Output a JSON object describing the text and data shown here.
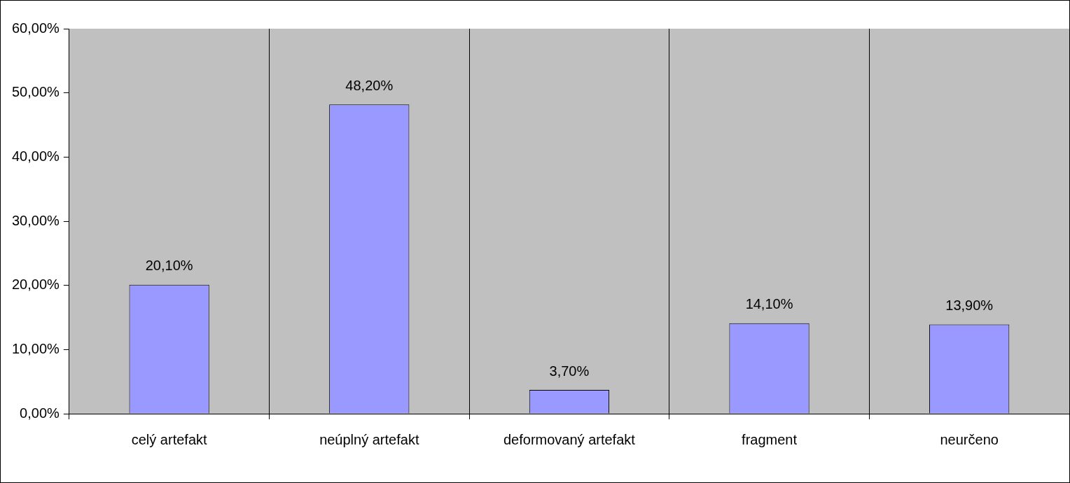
{
  "chart_data": {
    "type": "bar",
    "categories": [
      "celý artefakt",
      "neúplný artefakt",
      "deformovaný artefakt",
      "fragment",
      "neurčeno"
    ],
    "values": [
      20.1,
      48.2,
      3.7,
      14.1,
      13.9
    ],
    "value_labels": [
      "20,10%",
      "48,20%",
      "3,70%",
      "14,10%",
      "13,90%"
    ],
    "color": "#9999ff",
    "ylim": [
      0,
      60
    ],
    "yticks": [
      {
        "value": 0,
        "label": "0,00%"
      },
      {
        "value": 10,
        "label": "10,00%"
      },
      {
        "value": 20,
        "label": "20,00%"
      },
      {
        "value": 30,
        "label": "30,00%"
      },
      {
        "value": 40,
        "label": "40,00%"
      },
      {
        "value": 50,
        "label": "50,00%"
      },
      {
        "value": 60,
        "label": "60,00%"
      }
    ],
    "grid": "x",
    "legend": false
  }
}
